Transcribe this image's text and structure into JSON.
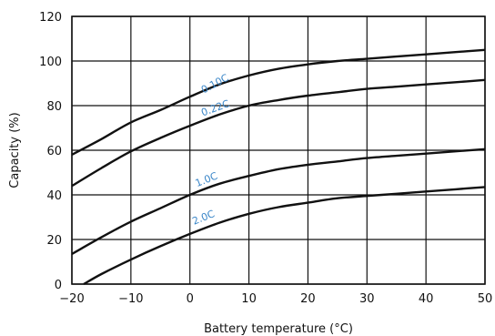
{
  "chart_data": {
    "type": "line",
    "title": "",
    "xlabel": "Battery temperature (°C)",
    "ylabel": "Capacity (%)",
    "xlim": [
      -20,
      50
    ],
    "ylim": [
      0,
      120
    ],
    "x_ticks": [
      -20,
      -10,
      0,
      10,
      20,
      30,
      40,
      50
    ],
    "y_ticks": [
      0,
      20,
      40,
      60,
      80,
      100,
      120
    ],
    "grid": true,
    "legend": "none",
    "line_color": "#111111",
    "label_color": "#3a86c8",
    "series": [
      {
        "name": "0.10C",
        "x": [
          -20,
          -15,
          -10,
          -5,
          0,
          5,
          10,
          15,
          20,
          25,
          30,
          35,
          40,
          45,
          50
        ],
        "y": [
          58,
          65,
          72.5,
          78,
          84,
          89.5,
          93.5,
          96.5,
          98.5,
          100,
          101,
          102,
          103,
          104,
          105
        ]
      },
      {
        "name": "0.22C",
        "x": [
          -20,
          -15,
          -10,
          -5,
          0,
          5,
          10,
          15,
          20,
          25,
          30,
          35,
          40,
          45,
          50
        ],
        "y": [
          44,
          52,
          59.5,
          65.5,
          71,
          76,
          80,
          82.5,
          84.5,
          86,
          87.5,
          88.5,
          89.5,
          90.5,
          91.5
        ]
      },
      {
        "name": "1.0C",
        "x": [
          -20,
          -15,
          -10,
          -5,
          0,
          5,
          10,
          15,
          20,
          25,
          30,
          35,
          40,
          45,
          50
        ],
        "y": [
          13.5,
          21,
          28,
          34,
          40,
          45,
          48.5,
          51.5,
          53.5,
          55,
          56.5,
          57.5,
          58.5,
          59.5,
          60.5
        ]
      },
      {
        "name": "2.0C",
        "x": [
          -18,
          -15,
          -10,
          -5,
          0,
          5,
          10,
          15,
          20,
          25,
          30,
          35,
          40,
          45,
          50
        ],
        "y": [
          0,
          4.5,
          11,
          17,
          22.5,
          27.5,
          31.5,
          34.5,
          36.5,
          38.5,
          39.5,
          40.5,
          41.5,
          42.5,
          43.5
        ]
      }
    ],
    "series_labels": [
      {
        "text": "0.10C",
        "x": 4.5,
        "y": 88.5,
        "angle": -28
      },
      {
        "text": "0.22C",
        "x": 4.5,
        "y": 77.5,
        "angle": -20
      },
      {
        "text": "1.0C",
        "x": 3,
        "y": 45.5,
        "angle": -22
      },
      {
        "text": "2.0C",
        "x": 2.5,
        "y": 28.5,
        "angle": -22
      }
    ]
  }
}
